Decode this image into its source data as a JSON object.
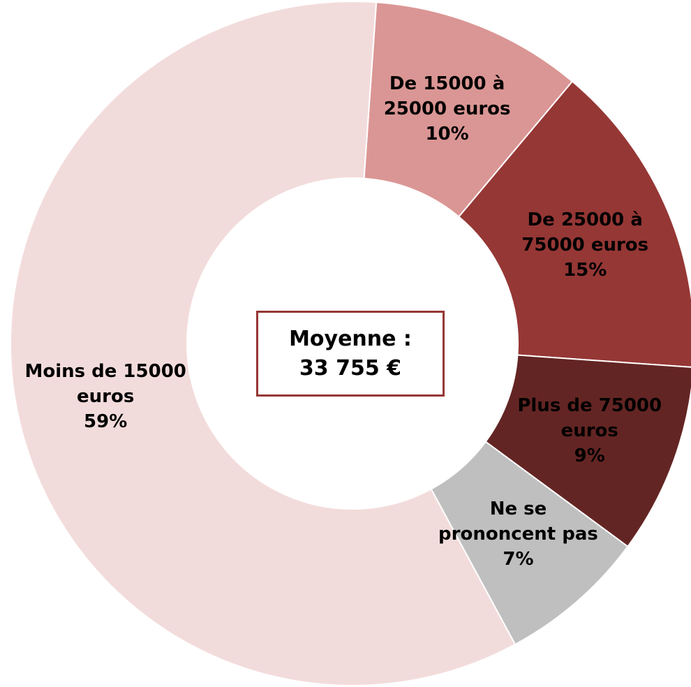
{
  "chart_data": {
    "type": "donut",
    "categories": [
      "De 15000 à 25000 euros",
      "De 25000 à 75000 euros",
      "Plus de 75000 euros",
      "Ne se prononcent pas",
      "Moins de 15000 euros"
    ],
    "values": [
      10,
      15,
      9,
      7,
      59
    ],
    "value_labels": [
      "10%",
      "15%",
      "9%",
      "7%",
      "59%"
    ],
    "colors": [
      "#da9694",
      "#953735",
      "#632523",
      "#bfbfbf",
      "#f2dcdb"
    ],
    "annotations": [
      "Moyenne :",
      "33 755  €"
    ]
  }
}
